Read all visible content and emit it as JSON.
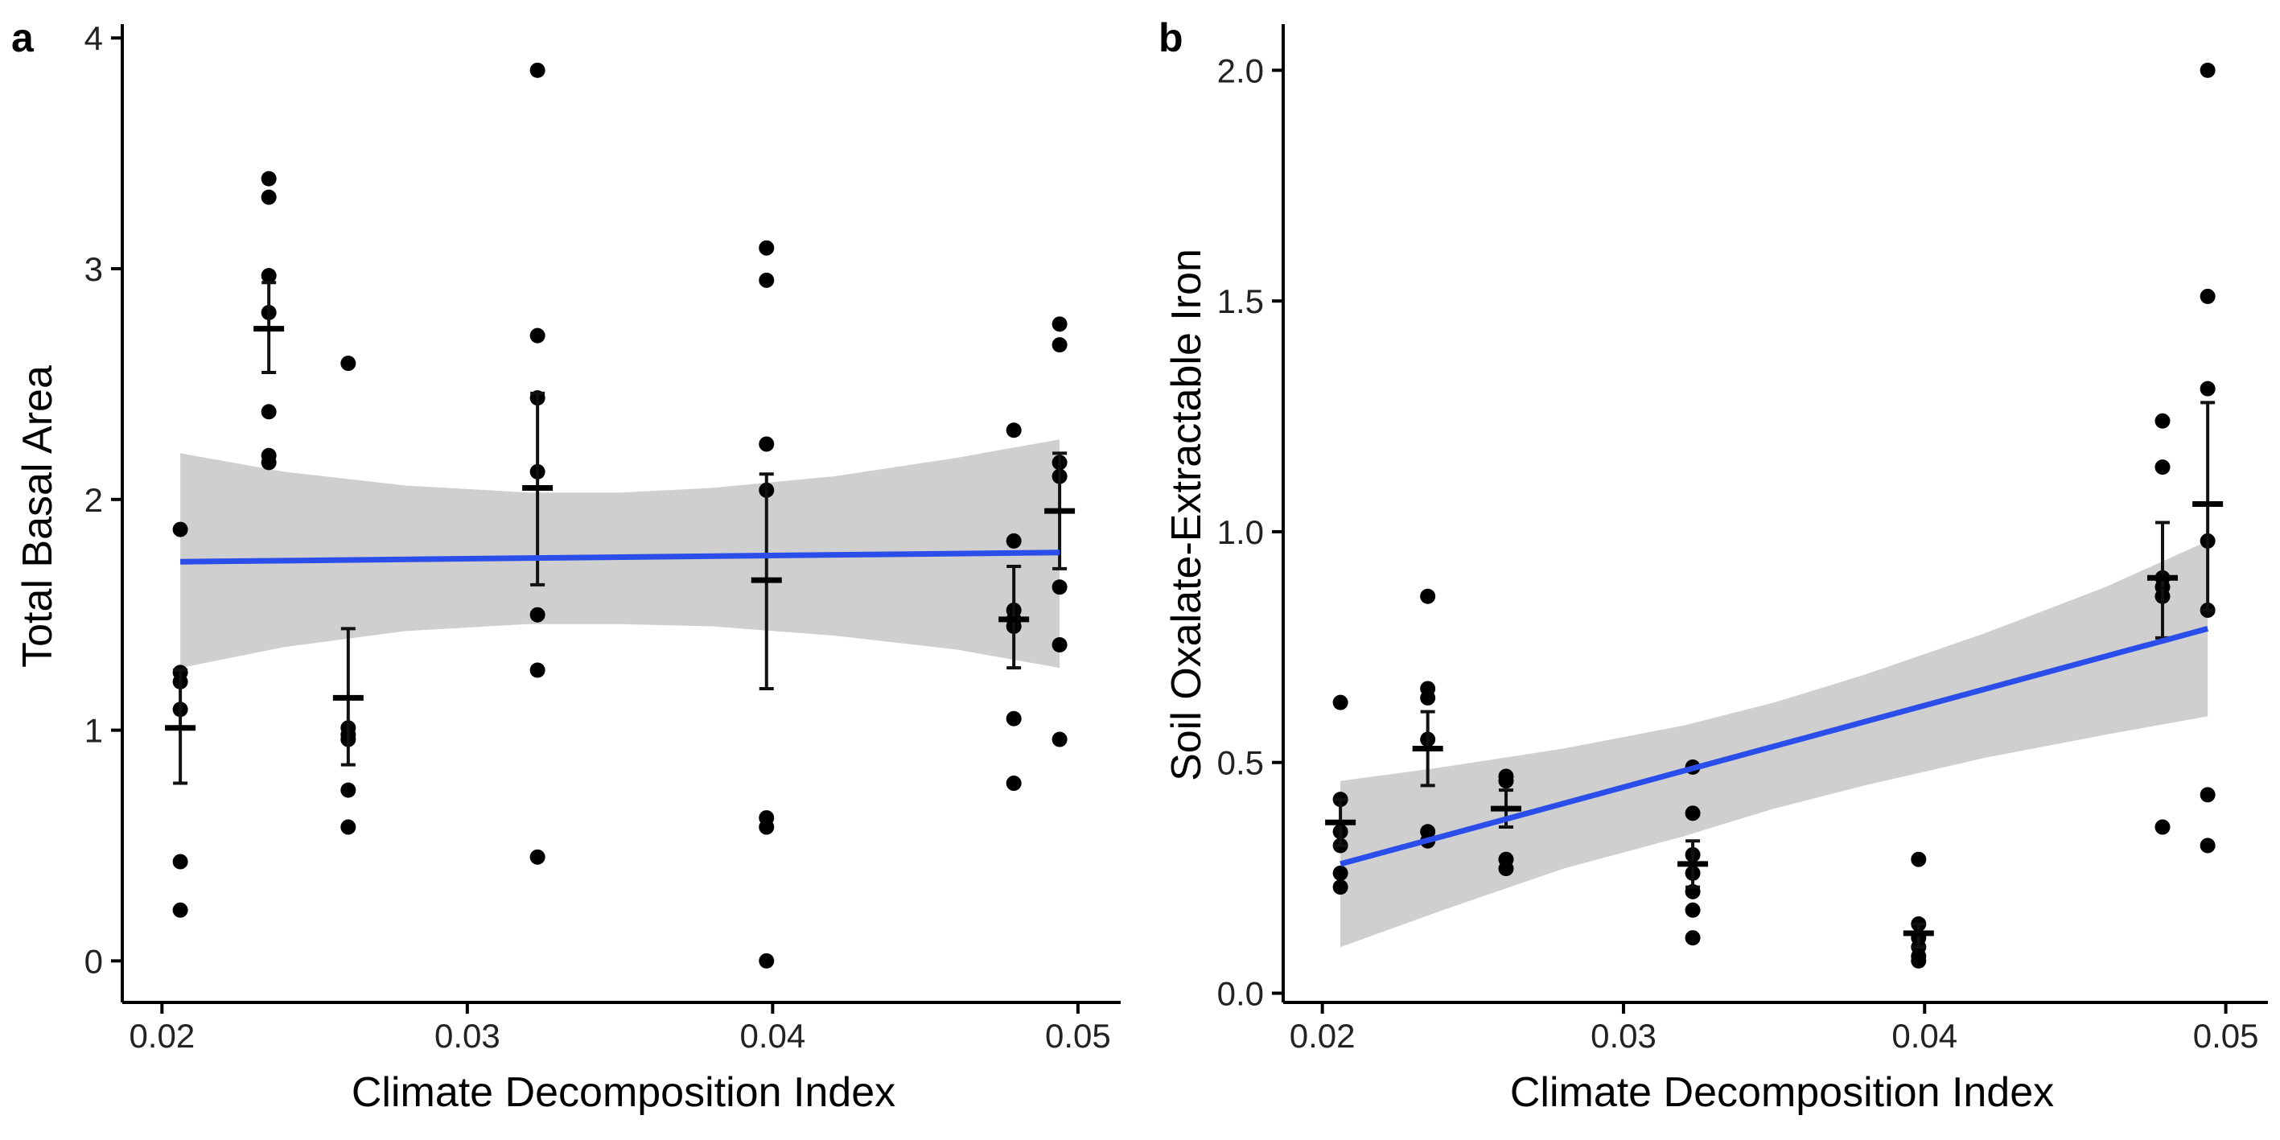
{
  "colors": {
    "fit_line": "#2B4EEA",
    "band": "#CCCCCC",
    "points": "#000000",
    "axis": "#000000"
  },
  "chart_data": [
    {
      "type": "scatter",
      "panel": "a",
      "xlabel": "Climate Decomposition Index",
      "ylabel": "Total Basal Area",
      "xlim": [
        0.0187,
        0.0514
      ],
      "ylim": [
        -0.18,
        4.06
      ],
      "xticks": [
        0.02,
        0.03,
        0.04,
        0.05
      ],
      "xtick_labels": [
        "0.02",
        "0.03",
        "0.04",
        "0.05"
      ],
      "yticks": [
        0,
        1,
        2,
        3,
        4
      ],
      "ytick_labels": [
        "0",
        "1",
        "2",
        "3",
        "4"
      ],
      "points": [
        [
          0.0206,
          1.87
        ],
        [
          0.0206,
          1.25
        ],
        [
          0.0206,
          1.21
        ],
        [
          0.0206,
          1.09
        ],
        [
          0.0206,
          0.43
        ],
        [
          0.0206,
          0.22
        ],
        [
          0.0235,
          3.39
        ],
        [
          0.0235,
          3.31
        ],
        [
          0.0235,
          2.97
        ],
        [
          0.0235,
          2.81
        ],
        [
          0.0235,
          2.38
        ],
        [
          0.0235,
          2.19
        ],
        [
          0.0235,
          2.16
        ],
        [
          0.0261,
          2.59
        ],
        [
          0.0261,
          1.01
        ],
        [
          0.0261,
          0.98
        ],
        [
          0.0261,
          0.96
        ],
        [
          0.0261,
          0.74
        ],
        [
          0.0261,
          0.58
        ],
        [
          0.0323,
          3.86
        ],
        [
          0.0323,
          2.71
        ],
        [
          0.0323,
          2.44
        ],
        [
          0.0323,
          2.12
        ],
        [
          0.0323,
          1.5
        ],
        [
          0.0323,
          1.26
        ],
        [
          0.0323,
          0.45
        ],
        [
          0.0398,
          3.09
        ],
        [
          0.0398,
          2.95
        ],
        [
          0.0398,
          2.24
        ],
        [
          0.0398,
          2.04
        ],
        [
          0.0398,
          0.62
        ],
        [
          0.0398,
          0.58
        ],
        [
          0.0398,
          0.0
        ],
        [
          0.0479,
          2.3
        ],
        [
          0.0479,
          1.82
        ],
        [
          0.0479,
          1.52
        ],
        [
          0.0479,
          1.48
        ],
        [
          0.0479,
          1.45
        ],
        [
          0.0479,
          1.05
        ],
        [
          0.0479,
          0.77
        ],
        [
          0.0494,
          2.76
        ],
        [
          0.0494,
          2.67
        ],
        [
          0.0494,
          2.16
        ],
        [
          0.0494,
          2.1
        ],
        [
          0.0494,
          1.62
        ],
        [
          0.0494,
          1.37
        ],
        [
          0.0494,
          0.96
        ]
      ],
      "group_means": [
        {
          "x": 0.0206,
          "mean": 1.01,
          "lower": 0.77,
          "upper": 1.26
        },
        {
          "x": 0.0235,
          "mean": 2.74,
          "lower": 2.55,
          "upper": 2.94
        },
        {
          "x": 0.0261,
          "mean": 1.14,
          "lower": 0.85,
          "upper": 1.44
        },
        {
          "x": 0.0323,
          "mean": 2.05,
          "lower": 1.63,
          "upper": 2.46
        },
        {
          "x": 0.0398,
          "mean": 1.65,
          "lower": 1.18,
          "upper": 2.11
        },
        {
          "x": 0.0479,
          "mean": 1.48,
          "lower": 1.27,
          "upper": 1.71
        },
        {
          "x": 0.0494,
          "mean": 1.95,
          "lower": 1.7,
          "upper": 2.2
        }
      ],
      "fit": {
        "x0": 0.0206,
        "y0": 1.73,
        "x1": 0.0494,
        "y1": 1.77
      },
      "ci_band": {
        "x": [
          0.0206,
          0.024,
          0.028,
          0.032,
          0.035,
          0.038,
          0.042,
          0.046,
          0.0494
        ],
        "lower": [
          1.27,
          1.36,
          1.43,
          1.46,
          1.46,
          1.45,
          1.41,
          1.35,
          1.27
        ],
        "upper": [
          2.2,
          2.12,
          2.06,
          2.03,
          2.03,
          2.05,
          2.1,
          2.18,
          2.26
        ]
      }
    },
    {
      "type": "scatter",
      "panel": "b",
      "xlabel": "Climate Decomposition Index",
      "ylabel": "Soil Oxalate-Extractable Iron",
      "xlim": [
        0.0187,
        0.0514
      ],
      "ylim": [
        -0.02,
        2.1
      ],
      "xticks": [
        0.02,
        0.03,
        0.04,
        0.05
      ],
      "xtick_labels": [
        "0.02",
        "0.03",
        "0.04",
        "0.05"
      ],
      "yticks": [
        0.0,
        0.5,
        1.0,
        1.5,
        2.0
      ],
      "ytick_labels": [
        "0.0",
        "0.5",
        "1.0",
        "1.5",
        "2.0"
      ],
      "points": [
        [
          0.0206,
          0.63
        ],
        [
          0.0206,
          0.42
        ],
        [
          0.0206,
          0.35
        ],
        [
          0.0206,
          0.32
        ],
        [
          0.0206,
          0.26
        ],
        [
          0.0206,
          0.23
        ],
        [
          0.0235,
          0.86
        ],
        [
          0.0235,
          0.66
        ],
        [
          0.0235,
          0.64
        ],
        [
          0.0235,
          0.55
        ],
        [
          0.0235,
          0.35
        ],
        [
          0.0235,
          0.33
        ],
        [
          0.0261,
          0.47
        ],
        [
          0.0261,
          0.46
        ],
        [
          0.0261,
          0.29
        ],
        [
          0.0261,
          0.27
        ],
        [
          0.0323,
          0.49
        ],
        [
          0.0323,
          0.39
        ],
        [
          0.0323,
          0.3
        ],
        [
          0.0323,
          0.26
        ],
        [
          0.0323,
          0.22
        ],
        [
          0.0323,
          0.18
        ],
        [
          0.0323,
          0.12
        ],
        [
          0.0398,
          0.29
        ],
        [
          0.0398,
          0.15
        ],
        [
          0.0398,
          0.12
        ],
        [
          0.0398,
          0.1
        ],
        [
          0.0398,
          0.08
        ],
        [
          0.0398,
          0.07
        ],
        [
          0.0479,
          1.24
        ],
        [
          0.0479,
          1.14
        ],
        [
          0.0479,
          0.9
        ],
        [
          0.0479,
          0.88
        ],
        [
          0.0479,
          0.86
        ],
        [
          0.0479,
          0.36
        ],
        [
          0.0494,
          2.0
        ],
        [
          0.0494,
          1.51
        ],
        [
          0.0494,
          1.31
        ],
        [
          0.0494,
          0.98
        ],
        [
          0.0494,
          0.83
        ],
        [
          0.0494,
          0.43
        ],
        [
          0.0494,
          0.32
        ]
      ],
      "group_means": [
        {
          "x": 0.0206,
          "mean": 0.37,
          "lower": 0.32,
          "upper": 0.42
        },
        {
          "x": 0.0235,
          "mean": 0.53,
          "lower": 0.45,
          "upper": 0.61
        },
        {
          "x": 0.0261,
          "mean": 0.4,
          "lower": 0.36,
          "upper": 0.44
        },
        {
          "x": 0.0323,
          "mean": 0.28,
          "lower": 0.23,
          "upper": 0.33
        },
        {
          "x": 0.0398,
          "mean": 0.13,
          "lower": 0.1,
          "upper": 0.15
        },
        {
          "x": 0.0479,
          "mean": 0.9,
          "lower": 0.77,
          "upper": 1.02
        },
        {
          "x": 0.0494,
          "mean": 1.06,
          "lower": 0.83,
          "upper": 1.28
        }
      ],
      "fit": {
        "x0": 0.0206,
        "y0": 0.28,
        "x1": 0.0494,
        "y1": 0.79
      },
      "ci_band": {
        "x": [
          0.0206,
          0.024,
          0.028,
          0.032,
          0.035,
          0.038,
          0.042,
          0.046,
          0.0494
        ],
        "lower": [
          0.1,
          0.18,
          0.27,
          0.34,
          0.4,
          0.45,
          0.51,
          0.56,
          0.6
        ],
        "upper": [
          0.46,
          0.49,
          0.53,
          0.58,
          0.63,
          0.69,
          0.78,
          0.88,
          0.98
        ]
      }
    }
  ]
}
